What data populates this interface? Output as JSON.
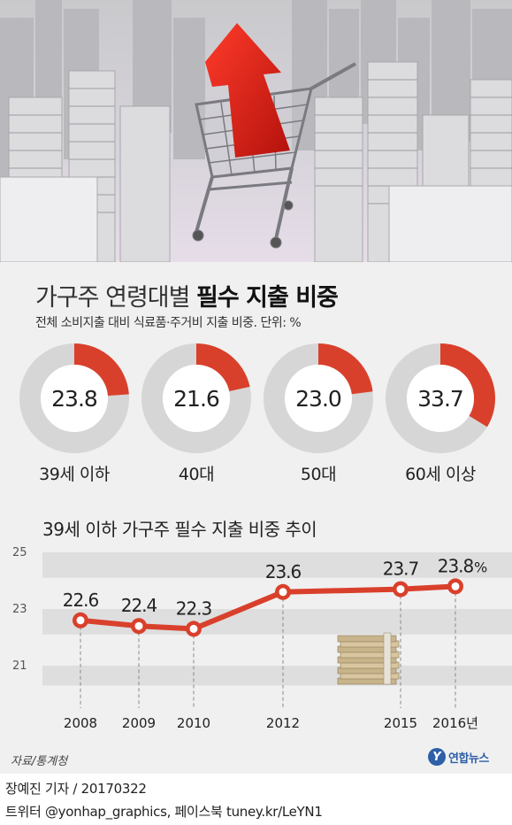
{
  "header": {
    "title_regular": "가구주 연령대별 ",
    "title_bold": "필수 지출 비중",
    "subtitle": "전체 소비지출 대비 식료품·주거비 지출 비중. 단위: %"
  },
  "donuts": [
    {
      "label": "39세 이하",
      "value": 23.8,
      "value_text": "23.8"
    },
    {
      "label": "40대",
      "value": 21.6,
      "value_text": "21.6"
    },
    {
      "label": "50대",
      "value": 23.0,
      "value_text": "23.0"
    },
    {
      "label": "60세 이상",
      "value": 33.7,
      "value_text": "33.7"
    }
  ],
  "colors": {
    "accent": "#d9402b",
    "donut_rest": "#d6d6d6",
    "panel_bg": "#f0f0f0",
    "logo_blue": "#2e5fa8"
  },
  "chart_data": [
    {
      "type": "pie",
      "title": "가구주 연령대별 필수 지출 비중",
      "subtitle": "전체 소비지출 대비 식료품·주거비 지출 비중. 단위: %",
      "categories": [
        "39세 이하",
        "40대",
        "50대",
        "60세 이상"
      ],
      "values": [
        23.8,
        21.6,
        23.0,
        33.7
      ]
    },
    {
      "type": "line",
      "title": "39세 이하 가구주 필수 지출 비중 추이",
      "x": [
        "2008",
        "2009",
        "2010",
        "2012",
        "2015",
        "2016년"
      ],
      "x_values": [
        2008,
        2009,
        2010,
        2012,
        2015,
        2016
      ],
      "values": [
        22.6,
        22.4,
        22.3,
        23.6,
        23.7,
        23.8
      ],
      "value_labels": [
        "22.6",
        "22.4",
        "22.3",
        "23.6",
        "23.7",
        "23.8"
      ],
      "unit": "%",
      "y_ticks": [
        "25",
        "23",
        "21"
      ],
      "ylim": [
        20.3,
        25
      ],
      "grid": true
    }
  ],
  "line_section_title": "39세 이하 가구주 필수 지출 비중 추이",
  "source": "자료/통계청",
  "logo_text": "연합뉴스",
  "credit": "장예진 기자 / 20170322",
  "twitter": "트위터 @yonhap_graphics, 페이스북 tuney.kr/LeYN1"
}
